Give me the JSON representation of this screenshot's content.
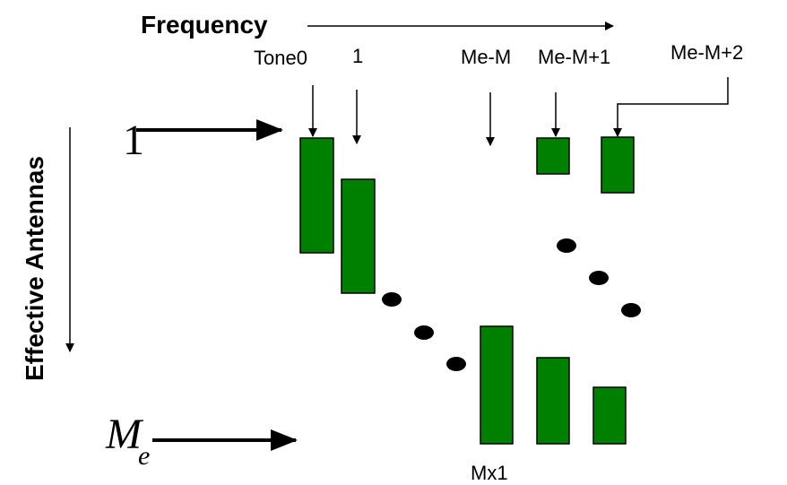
{
  "header": {
    "frequency_label": "Frequency"
  },
  "side": {
    "antennas_label": "Effective Antennas"
  },
  "rows": {
    "first_label": "1",
    "last_label_base": "M",
    "last_label_sub": "e"
  },
  "tones": {
    "tone0": "Tone0",
    "tone1": "1",
    "tone_me_m": "Me-M",
    "tone_me_m1": "Me-M+1",
    "tone_me_m2": "Me-M+2"
  },
  "bottom": {
    "size_label": "Mx1"
  },
  "colors": {
    "bar_fill": "#008000",
    "line": "#000000"
  }
}
